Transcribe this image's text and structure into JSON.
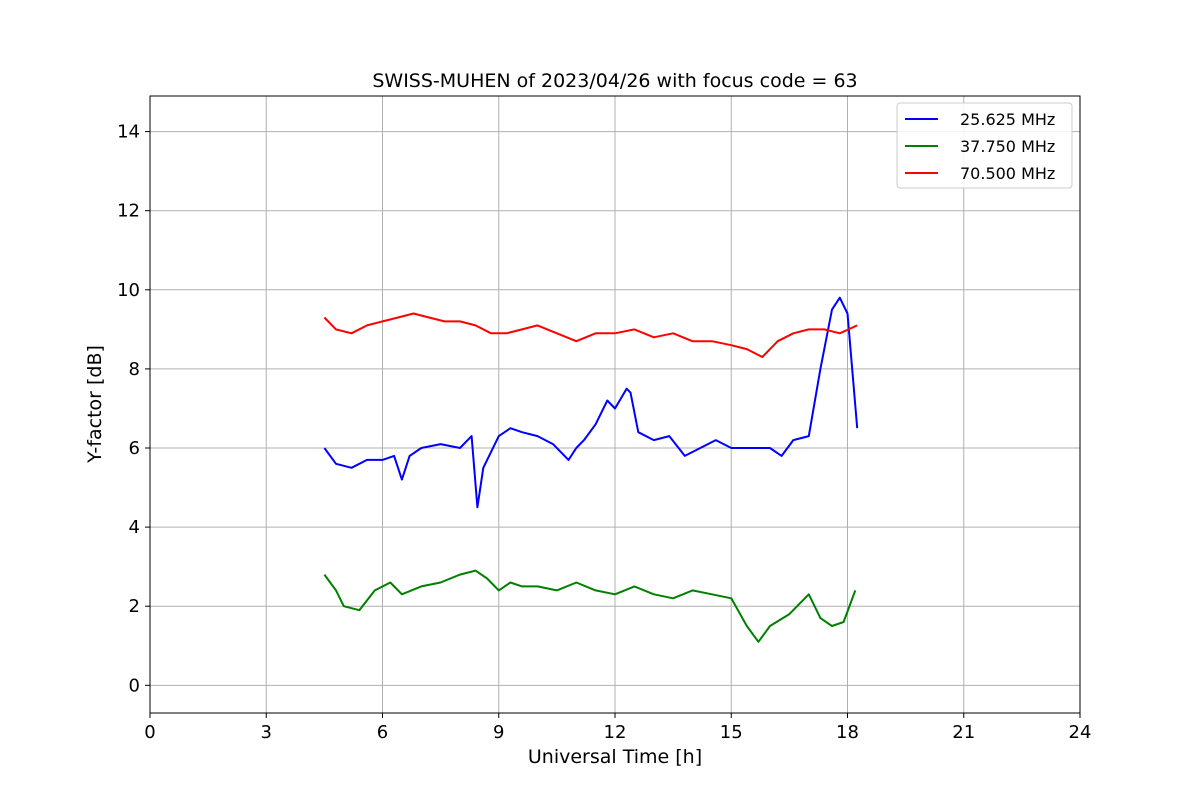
{
  "chart_data": {
    "type": "line",
    "title": "SWISS-MUHEN of 2023/04/26 with focus code = 63",
    "xlabel": "Universal Time [h]",
    "ylabel": "Y-factor [dB]",
    "xlim": [
      0,
      24
    ],
    "ylim": [
      -0.7,
      14.9
    ],
    "xticks": [
      0,
      3,
      6,
      9,
      12,
      15,
      18,
      21,
      24
    ],
    "yticks": [
      0,
      2,
      4,
      6,
      8,
      10,
      12,
      14
    ],
    "grid": true,
    "legend_position": "top-right",
    "series": [
      {
        "name": "25.625 MHz",
        "color": "#0000ff",
        "x": [
          4.5,
          4.8,
          5.2,
          5.6,
          6.0,
          6.3,
          6.5,
          6.7,
          7.0,
          7.5,
          8.0,
          8.3,
          8.45,
          8.6,
          9.0,
          9.3,
          9.6,
          10.0,
          10.4,
          10.8,
          11.0,
          11.2,
          11.5,
          11.8,
          12.0,
          12.3,
          12.4,
          12.6,
          13.0,
          13.4,
          13.8,
          14.2,
          14.6,
          15.0,
          15.5,
          16.0,
          16.3,
          16.6,
          17.0,
          17.3,
          17.6,
          17.8,
          18.0,
          18.25
        ],
        "y": [
          6.0,
          5.6,
          5.5,
          5.7,
          5.7,
          5.8,
          5.2,
          5.8,
          6.0,
          6.1,
          6.0,
          6.3,
          4.5,
          5.5,
          6.3,
          6.5,
          6.4,
          6.3,
          6.1,
          5.7,
          6.0,
          6.2,
          6.6,
          7.2,
          7.0,
          7.5,
          7.4,
          6.4,
          6.2,
          6.3,
          5.8,
          6.0,
          6.2,
          6.0,
          6.0,
          6.0,
          5.8,
          6.2,
          6.3,
          8.0,
          9.5,
          9.8,
          9.4,
          6.5
        ]
      },
      {
        "name": "37.750 MHz",
        "color": "#008000",
        "x": [
          4.5,
          4.8,
          5.0,
          5.4,
          5.8,
          6.2,
          6.5,
          7.0,
          7.5,
          8.0,
          8.4,
          8.7,
          9.0,
          9.3,
          9.6,
          10.0,
          10.5,
          11.0,
          11.5,
          12.0,
          12.5,
          13.0,
          13.5,
          14.0,
          14.5,
          15.0,
          15.4,
          15.7,
          16.0,
          16.5,
          17.0,
          17.3,
          17.6,
          17.9,
          18.2
        ],
        "y": [
          2.8,
          2.4,
          2.0,
          1.9,
          2.4,
          2.6,
          2.3,
          2.5,
          2.6,
          2.8,
          2.9,
          2.7,
          2.4,
          2.6,
          2.5,
          2.5,
          2.4,
          2.6,
          2.4,
          2.3,
          2.5,
          2.3,
          2.2,
          2.4,
          2.3,
          2.2,
          1.5,
          1.1,
          1.5,
          1.8,
          2.3,
          1.7,
          1.5,
          1.6,
          2.4
        ]
      },
      {
        "name": "70.500 MHz",
        "color": "#ff0000",
        "x": [
          4.5,
          4.8,
          5.2,
          5.6,
          6.0,
          6.4,
          6.8,
          7.2,
          7.6,
          8.0,
          8.4,
          8.8,
          9.2,
          9.6,
          10.0,
          10.5,
          11.0,
          11.5,
          12.0,
          12.5,
          13.0,
          13.5,
          14.0,
          14.5,
          15.0,
          15.4,
          15.8,
          16.2,
          16.6,
          17.0,
          17.4,
          17.8,
          18.25
        ],
        "y": [
          9.3,
          9.0,
          8.9,
          9.1,
          9.2,
          9.3,
          9.4,
          9.3,
          9.2,
          9.2,
          9.1,
          8.9,
          8.9,
          9.0,
          9.1,
          8.9,
          8.7,
          8.9,
          8.9,
          9.0,
          8.8,
          8.9,
          8.7,
          8.7,
          8.6,
          8.5,
          8.3,
          8.7,
          8.9,
          9.0,
          9.0,
          8.9,
          9.1
        ]
      }
    ]
  }
}
